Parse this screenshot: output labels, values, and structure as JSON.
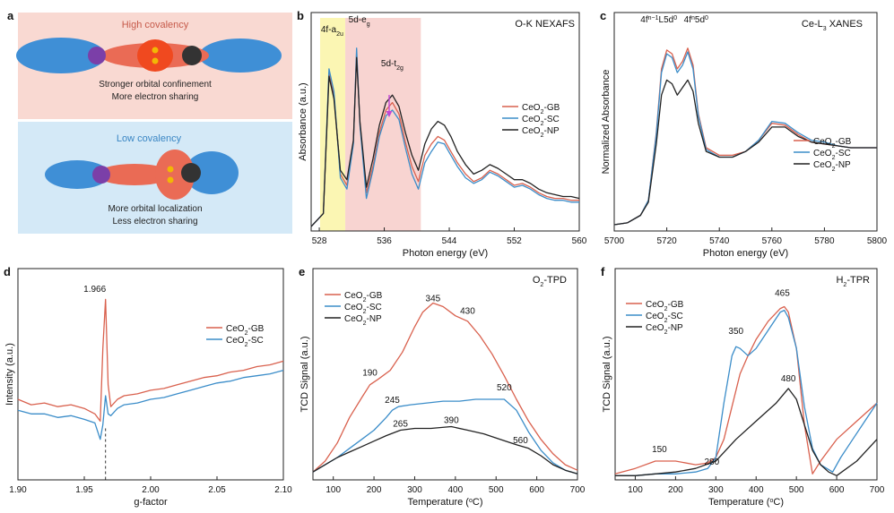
{
  "colors": {
    "GB": "#d9614e",
    "SC": "#3b8dc9",
    "NP": "#222222",
    "panel_a_top_bg": "#f9d9d2",
    "panel_a_bottom_bg": "#d4e9f7",
    "orbital_blue": "#3f8fd6",
    "orbital_red": "#ea6b55",
    "atom_purple": "#7b3fa8",
    "atom_dark": "#333333",
    "electron": "#f2b705",
    "nexafs_yellow_band": "#fbf6b3",
    "nexafs_pink_band": "#f8d4d1",
    "arrow_magenta": "#c248d6"
  },
  "panel_a": {
    "label": "a",
    "high_title": "High covalency",
    "high_line1": "Stronger orbital confinement",
    "high_line2": "More electron sharing",
    "low_title": "Low covalency",
    "low_line1": "More orbital localization",
    "low_line2": "Less electron sharing"
  },
  "chart_data": [
    {
      "id": "b",
      "label": "b",
      "type": "line",
      "title": "O-K NEXAFS",
      "xlabel": "Photon energy (eV)",
      "ylabel": "Absorbance (a.u.)",
      "xlim": [
        527,
        560
      ],
      "ylim": [
        0,
        100
      ],
      "yticks": false,
      "xticks": [
        "528",
        "536",
        "544",
        "552",
        "560"
      ],
      "legend_position": "right",
      "annotations": [
        {
          "text": "4f-a",
          "sub": "2u",
          "x": 529.2
        },
        {
          "text": "5d-e",
          "sub": "g",
          "x": 532.6
        },
        {
          "text": "5d-t",
          "sub": "2g",
          "x": 536.8
        }
      ],
      "series": [
        {
          "name": "CeO2-GB",
          "color_key": "GB",
          "x": [
            527,
            528.5,
            529.2,
            529.8,
            530.6,
            531.4,
            532.2,
            532.6,
            533,
            533.8,
            534.6,
            535.4,
            536.2,
            537,
            537.8,
            538.6,
            539.4,
            540.2,
            541,
            541.8,
            542.6,
            543.4,
            544.2,
            545,
            546,
            547,
            548,
            549,
            550,
            551,
            552,
            553,
            554,
            555,
            556,
            557,
            558,
            559,
            560
          ],
          "y": [
            0,
            7,
            82,
            70,
            28,
            22,
            45,
            93,
            55,
            18,
            32,
            50,
            62,
            66,
            60,
            45,
            32,
            24,
            38,
            44,
            48,
            46,
            40,
            34,
            28,
            24,
            26,
            30,
            28,
            25,
            22,
            23,
            21,
            18,
            16,
            15,
            15,
            14,
            14
          ]
        },
        {
          "name": "CeO2-SC",
          "color_key": "SC",
          "x": [
            527,
            528.5,
            529.2,
            529.8,
            530.6,
            531.4,
            532.2,
            532.6,
            533,
            533.8,
            534.6,
            535.4,
            536.2,
            537,
            537.8,
            538.6,
            539.4,
            540.2,
            541,
            541.8,
            542.6,
            543.4,
            544.2,
            545,
            546,
            547,
            548,
            549,
            550,
            551,
            552,
            553,
            554,
            555,
            556,
            557,
            558,
            559,
            560
          ],
          "y": [
            0,
            7,
            84,
            72,
            26,
            20,
            44,
            95,
            54,
            15,
            30,
            48,
            59,
            62,
            57,
            42,
            28,
            20,
            34,
            40,
            45,
            44,
            38,
            32,
            26,
            23,
            25,
            29,
            27,
            24,
            21,
            22,
            20,
            17,
            15,
            14,
            14,
            13,
            13
          ]
        },
        {
          "name": "CeO2-NP",
          "color_key": "NP",
          "x": [
            527,
            528.5,
            529.2,
            529.8,
            530.6,
            531.4,
            532.2,
            532.6,
            533,
            533.8,
            534.6,
            535.4,
            536.2,
            537,
            537.8,
            538.6,
            539.4,
            540.2,
            541,
            541.8,
            542.6,
            543.4,
            544.2,
            545,
            546,
            547,
            548,
            549,
            550,
            551,
            552,
            553,
            554,
            555,
            556,
            557,
            558,
            559,
            560
          ],
          "y": [
            0,
            7,
            80,
            68,
            30,
            25,
            46,
            90,
            56,
            21,
            36,
            54,
            66,
            70,
            64,
            50,
            38,
            30,
            44,
            52,
            56,
            54,
            48,
            40,
            33,
            28,
            30,
            33,
            31,
            28,
            25,
            25,
            23,
            20,
            18,
            17,
            16,
            16,
            15
          ]
        }
      ]
    },
    {
      "id": "c",
      "label": "c",
      "type": "line",
      "title": "Ce-L3 XANES",
      "xlabel": "Photon energy (eV)",
      "ylabel": "Normalized Absorbance",
      "xlim": [
        5700,
        5800
      ],
      "ylim": [
        0,
        100
      ],
      "yticks": false,
      "xticks": [
        "5700",
        "5720",
        "5740",
        "5760",
        "5780",
        "5800"
      ],
      "legend_position": "lower-right",
      "annotations": [
        {
          "text": "4f",
          "sup": "n−1",
          "tail": "L5d",
          "sup2": "0",
          "x": 5721
        },
        {
          "text": "4f",
          "sup": "n",
          "tail": "5d",
          "sup2": "0",
          "x": 5728
        }
      ],
      "series": [
        {
          "name": "CeO2-GB",
          "color_key": "GB",
          "x": [
            5700,
            5705,
            5710,
            5713,
            5716,
            5718,
            5720,
            5722,
            5724,
            5726,
            5728,
            5730,
            5732,
            5735,
            5740,
            5745,
            5750,
            5755,
            5760,
            5765,
            5770,
            5775,
            5780,
            5785,
            5790,
            5795,
            5800
          ],
          "y": [
            1,
            2,
            6,
            14,
            50,
            84,
            94,
            92,
            84,
            88,
            95,
            86,
            60,
            42,
            38,
            38,
            40,
            46,
            55,
            54,
            49,
            45,
            44,
            43,
            42,
            42,
            42
          ]
        },
        {
          "name": "CeO2-SC",
          "color_key": "SC",
          "x": [
            5700,
            5705,
            5710,
            5713,
            5716,
            5718,
            5720,
            5722,
            5724,
            5726,
            5728,
            5730,
            5732,
            5735,
            5740,
            5745,
            5750,
            5755,
            5760,
            5765,
            5770,
            5775,
            5780,
            5785,
            5790,
            5795,
            5800
          ],
          "y": [
            1,
            2,
            6,
            14,
            49,
            82,
            92,
            90,
            82,
            86,
            93,
            84,
            59,
            41,
            37,
            37,
            40,
            46,
            56,
            55,
            50,
            46,
            45,
            43,
            42,
            42,
            42
          ]
        },
        {
          "name": "CeO2-NP",
          "color_key": "NP",
          "x": [
            5700,
            5705,
            5710,
            5713,
            5716,
            5718,
            5720,
            5722,
            5724,
            5726,
            5728,
            5730,
            5732,
            5735,
            5740,
            5745,
            5750,
            5755,
            5760,
            5765,
            5770,
            5775,
            5780,
            5785,
            5790,
            5795,
            5800
          ],
          "y": [
            1,
            2,
            6,
            13,
            44,
            70,
            78,
            76,
            70,
            74,
            78,
            72,
            55,
            40,
            37,
            37,
            40,
            45,
            53,
            53,
            48,
            45,
            44,
            43,
            42,
            42,
            42
          ]
        }
      ]
    },
    {
      "id": "d",
      "label": "d",
      "type": "line",
      "title": "",
      "xlabel": "g-factor",
      "ylabel": "Intensity (a.u.)",
      "xlim": [
        1.9,
        2.1
      ],
      "ylim": [
        0,
        100
      ],
      "yticks": false,
      "xticks": [
        "1.90",
        "1.95",
        "2.00",
        "2.05",
        "2.10"
      ],
      "legend_position": "right",
      "annotations": [
        {
          "text": "1.966",
          "x": 1.966
        }
      ],
      "series": [
        {
          "name": "CeO2-GB",
          "color_key": "GB",
          "x": [
            1.9,
            1.91,
            1.92,
            1.93,
            1.94,
            1.95,
            1.958,
            1.962,
            1.964,
            1.966,
            1.968,
            1.97,
            1.975,
            1.98,
            1.99,
            2.0,
            2.01,
            2.02,
            2.03,
            2.04,
            2.05,
            2.06,
            2.07,
            2.08,
            2.09,
            2.1
          ],
          "y": [
            42,
            39,
            40,
            38,
            39,
            37,
            34,
            30,
            70,
            97,
            50,
            38,
            42,
            44,
            45,
            47,
            48,
            50,
            52,
            54,
            55,
            57,
            58,
            60,
            61,
            63
          ]
        },
        {
          "name": "CeO2-SC",
          "color_key": "SC",
          "x": [
            1.9,
            1.91,
            1.92,
            1.93,
            1.94,
            1.95,
            1.958,
            1.962,
            1.964,
            1.966,
            1.968,
            1.97,
            1.975,
            1.98,
            1.99,
            2.0,
            2.01,
            2.02,
            2.03,
            2.04,
            2.05,
            2.06,
            2.07,
            2.08,
            2.09,
            2.1
          ],
          "y": [
            36,
            34,
            34,
            32,
            33,
            31,
            29,
            20,
            28,
            44,
            34,
            33,
            37,
            39,
            40,
            42,
            43,
            45,
            47,
            49,
            51,
            52,
            54,
            55,
            56,
            58
          ]
        }
      ]
    },
    {
      "id": "e",
      "label": "e",
      "type": "line",
      "title": "O2-TPD",
      "xlabel": "Temperature (°C)",
      "ylabel": "TCD Signal (a.u.)",
      "xlim": [
        50,
        700
      ],
      "ylim": [
        0,
        100
      ],
      "yticks": false,
      "xticks": [
        "100",
        "200",
        "300",
        "400",
        "500",
        "600",
        "700"
      ],
      "legend_position": "top-left",
      "annotations": [
        {
          "text": "345",
          "x": 345,
          "y": 93
        },
        {
          "text": "430",
          "x": 430,
          "y": 86
        },
        {
          "text": "190",
          "x": 190,
          "y": 52
        },
        {
          "text": "245",
          "x": 245,
          "y": 37
        },
        {
          "text": "520",
          "x": 520,
          "y": 44
        },
        {
          "text": "265",
          "x": 265,
          "y": 24
        },
        {
          "text": "390",
          "x": 390,
          "y": 26
        },
        {
          "text": "560",
          "x": 560,
          "y": 15
        }
      ],
      "series": [
        {
          "name": "CeO2-GB",
          "color_key": "GB",
          "x": [
            50,
            80,
            110,
            140,
            170,
            190,
            210,
            240,
            270,
            300,
            320,
            345,
            370,
            400,
            430,
            460,
            490,
            520,
            550,
            580,
            610,
            640,
            670,
            700
          ],
          "y": [
            2,
            8,
            18,
            32,
            43,
            50,
            53,
            58,
            68,
            82,
            90,
            95,
            93,
            88,
            85,
            77,
            67,
            55,
            42,
            30,
            20,
            12,
            6,
            3
          ]
        },
        {
          "name": "CeO2-SC",
          "color_key": "SC",
          "x": [
            50,
            80,
            110,
            140,
            170,
            200,
            230,
            245,
            260,
            290,
            330,
            370,
            410,
            450,
            490,
            520,
            550,
            580,
            610,
            640,
            670,
            700
          ],
          "y": [
            2,
            6,
            10,
            15,
            20,
            25,
            32,
            36,
            38,
            39,
            40,
            41,
            41,
            42,
            42,
            42,
            36,
            24,
            14,
            7,
            3,
            1
          ]
        },
        {
          "name": "CeO2-NP",
          "color_key": "NP",
          "x": [
            50,
            80,
            110,
            140,
            170,
            200,
            230,
            265,
            300,
            340,
            390,
            430,
            470,
            510,
            550,
            580,
            610,
            640,
            670,
            700
          ],
          "y": [
            2,
            6,
            10,
            13,
            16,
            19,
            22,
            25,
            26,
            26,
            27,
            25,
            23,
            20,
            17,
            15,
            11,
            6,
            3,
            1
          ]
        }
      ]
    },
    {
      "id": "f",
      "label": "f",
      "type": "line",
      "title": "H2-TPR",
      "xlabel": "Temperature (°C)",
      "ylabel": "TCD Signal (a.u.)",
      "xlim": [
        50,
        700
      ],
      "ylim": [
        0,
        100
      ],
      "yticks": false,
      "xticks": [
        "100",
        "200",
        "300",
        "400",
        "500",
        "600",
        "700"
      ],
      "legend_position": "top-left",
      "annotations": [
        {
          "text": "465",
          "x": 465,
          "y": 96
        },
        {
          "text": "350",
          "x": 350,
          "y": 75
        },
        {
          "text": "480",
          "x": 480,
          "y": 49
        },
        {
          "text": "150",
          "x": 160,
          "y": 10
        },
        {
          "text": "280",
          "x": 290,
          "y": 3
        }
      ],
      "series": [
        {
          "name": "CeO2-GB",
          "color_key": "GB",
          "x": [
            50,
            100,
            150,
            200,
            250,
            280,
            300,
            320,
            340,
            360,
            380,
            400,
            430,
            460,
            470,
            480,
            500,
            520,
            540,
            560,
            600,
            650,
            700
          ],
          "y": [
            1,
            4,
            8,
            8,
            6,
            7,
            10,
            20,
            38,
            56,
            66,
            75,
            85,
            92,
            93,
            90,
            70,
            28,
            1,
            8,
            20,
            30,
            40
          ]
        },
        {
          "name": "CeO2-SC",
          "color_key": "SC",
          "x": [
            50,
            100,
            150,
            200,
            250,
            280,
            300,
            320,
            340,
            350,
            360,
            380,
            400,
            430,
            460,
            470,
            480,
            500,
            520,
            540,
            560,
            590,
            610,
            640,
            670,
            700
          ],
          "y": [
            0,
            0,
            1,
            1,
            2,
            4,
            10,
            40,
            66,
            71,
            70,
            66,
            70,
            80,
            90,
            91,
            87,
            70,
            38,
            15,
            6,
            2,
            10,
            20,
            30,
            40
          ]
        },
        {
          "name": "CeO2-NP",
          "color_key": "NP",
          "x": [
            50,
            100,
            150,
            200,
            250,
            300,
            350,
            400,
            450,
            480,
            500,
            520,
            540,
            560,
            580,
            600,
            650,
            700
          ],
          "y": [
            0,
            0,
            1,
            2,
            4,
            8,
            20,
            30,
            40,
            48,
            42,
            28,
            14,
            6,
            2,
            0,
            8,
            20
          ]
        }
      ]
    }
  ]
}
